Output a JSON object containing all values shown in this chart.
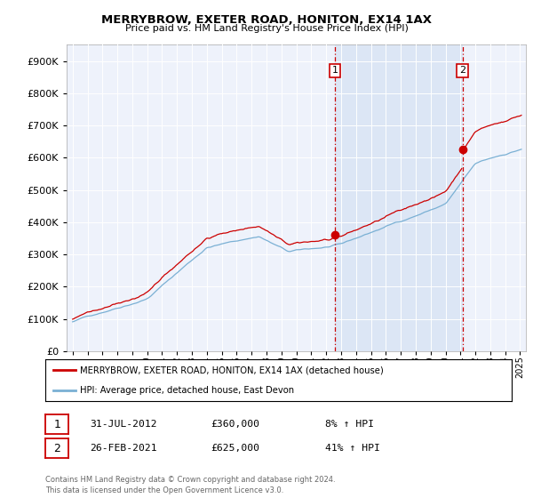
{
  "title": "MERRYBROW, EXETER ROAD, HONITON, EX14 1AX",
  "subtitle": "Price paid vs. HM Land Registry's House Price Index (HPI)",
  "legend_line1": "MERRYBROW, EXETER ROAD, HONITON, EX14 1AX (detached house)",
  "legend_line2": "HPI: Average price, detached house, East Devon",
  "ann1_date": "31-JUL-2012",
  "ann1_price": "£360,000",
  "ann1_pct": "8% ↑ HPI",
  "ann2_date": "26-FEB-2021",
  "ann2_price": "£625,000",
  "ann2_pct": "41% ↑ HPI",
  "footer": "Contains HM Land Registry data © Crown copyright and database right 2024.\nThis data is licensed under the Open Government Licence v3.0.",
  "property_color": "#cc0000",
  "hpi_color": "#7ab0d4",
  "vline_color": "#cc0000",
  "background_color": "#ffffff",
  "plot_bg_color": "#eef2fb",
  "shade_color": "#dce6f5",
  "ylim": [
    0,
    950000
  ],
  "yticks": [
    0,
    100000,
    200000,
    300000,
    400000,
    500000,
    600000,
    700000,
    800000,
    900000
  ],
  "xlim_start": 1994.6,
  "xlim_end": 2025.4,
  "sale1_year": 2012.58,
  "sale1_price": 360000,
  "sale2_year": 2021.15,
  "sale2_price": 625000
}
